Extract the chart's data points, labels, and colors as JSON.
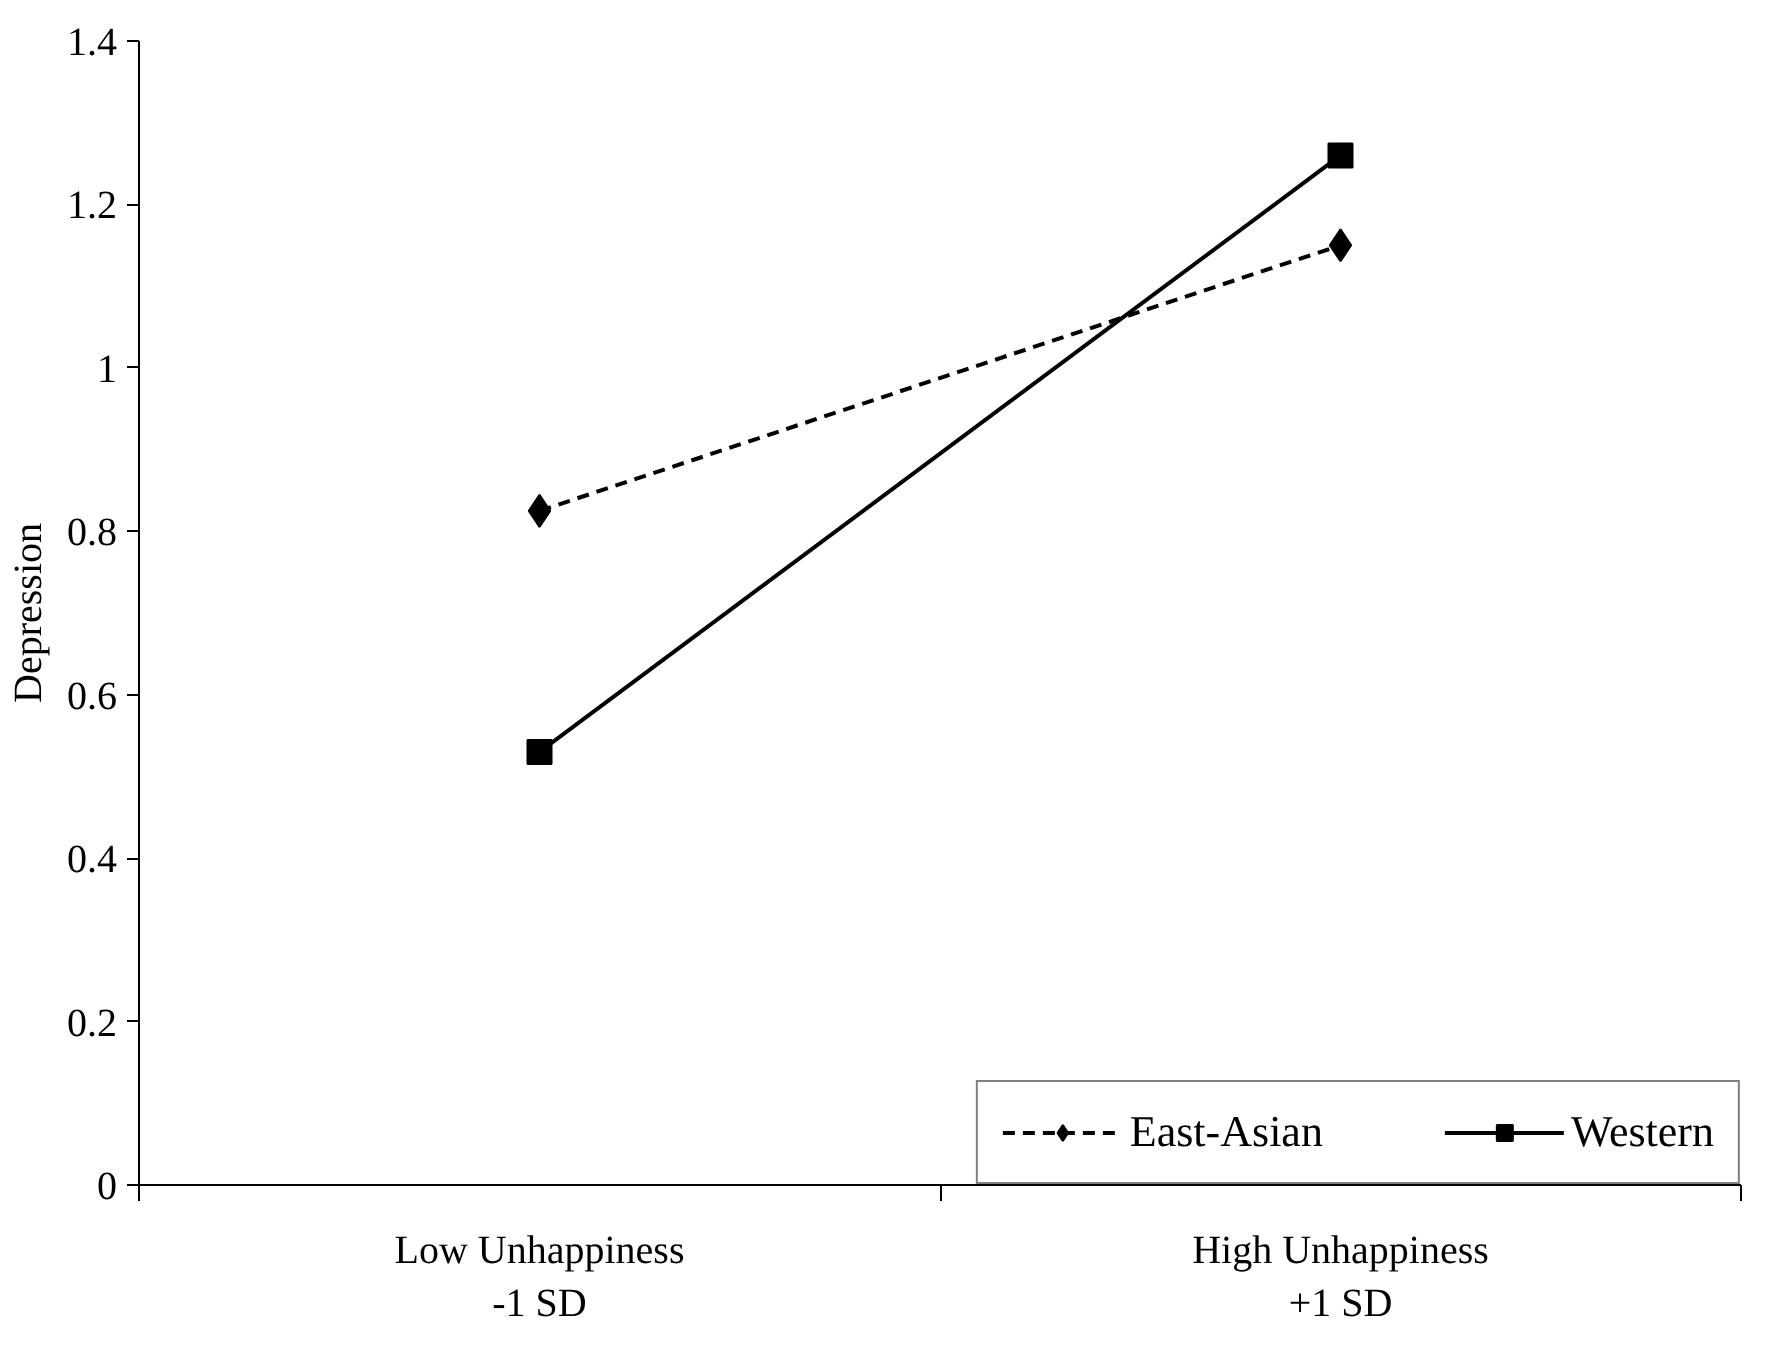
{
  "chart_data": {
    "type": "line",
    "ylabel": "Depression",
    "categories": [
      "Low Unhappiness\n-1 SD",
      "High Unhappiness\n+1 SD"
    ],
    "series": [
      {
        "name": "East-Asian",
        "color": "#000000",
        "values": [
          0.825,
          1.15
        ],
        "marker": "diamond",
        "line_style": "dashed"
      },
      {
        "name": "Western",
        "color": "#000000",
        "values": [
          0.53,
          1.26
        ],
        "marker": "square",
        "line_style": "solid"
      }
    ],
    "ylim": [
      0,
      1.4
    ],
    "yticks": [
      0,
      0.2,
      0.4,
      0.6,
      0.8,
      1,
      1.2,
      1.4
    ],
    "grid": false,
    "legend": "bottom right"
  }
}
